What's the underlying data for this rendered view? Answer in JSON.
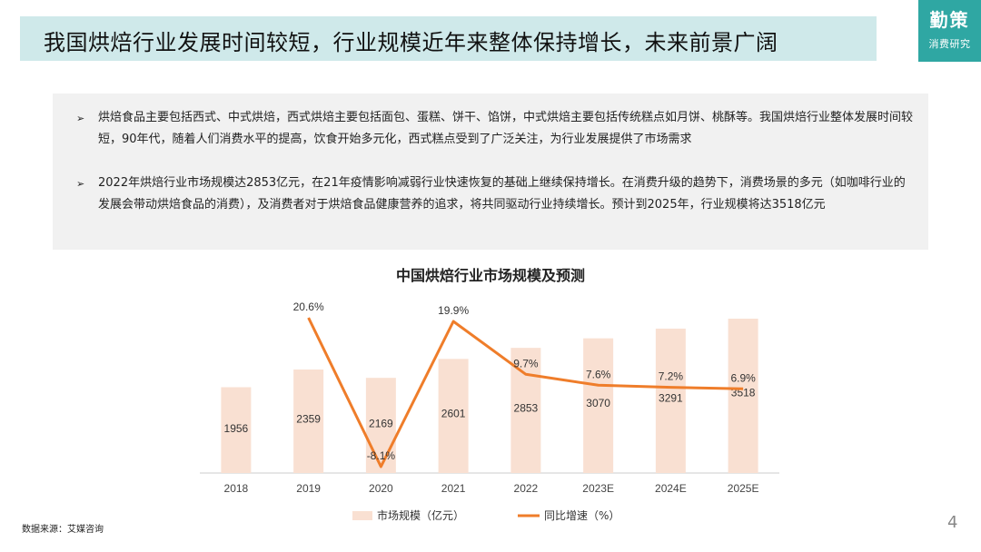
{
  "header": {
    "title": "我国烘焙行业发展时间较短，行业规模近年来整体保持增长，未来前景广阔",
    "logo_main": "勤策",
    "logo_sub": "消费研究"
  },
  "summary": {
    "bullet1": "烘焙食品主要包括西式、中式烘焙，西式烘焙主要包括面包、蛋糕、饼干、馅饼，中式烘焙主要包括传统糕点如月饼、桃酥等。我国烘焙行业整体发展时间较短，90年代，随着人们消费水平的提高，饮食开始多元化，西式糕点受到了广泛关注，为行业发展提供了市场需求",
    "bullet2": "2022年烘焙行业市场规模达2853亿元，在21年疫情影响减弱行业快速恢复的基础上继续保持增长。在消费升级的趋势下，消费场景的多元（如咖啡行业的发展会带动烘焙食品的消费），及消费者对于烘焙食品健康营养的追求，将共同驱动行业持续增长。预计到2025年，行业规模将达3518亿元",
    "bullet_icon": "arrow-right-icon"
  },
  "chart_data": {
    "type": "bar",
    "title": "中国烘焙行业市场规模及预测",
    "categories": [
      "2018",
      "2019",
      "2020",
      "2021",
      "2022",
      "2023E",
      "2024E",
      "2025E"
    ],
    "series": [
      {
        "name": "市场规模（亿元）",
        "type": "bar",
        "values": [
          1956,
          2359,
          2169,
          2601,
          2853,
          3070,
          3291,
          3518
        ],
        "labels": [
          "1956",
          "2359",
          "2169",
          "2601",
          "2853",
          "3070",
          "3291",
          "3518"
        ],
        "color": "#f9e0d2"
      },
      {
        "name": "同比增速（%）",
        "type": "line",
        "values": [
          null,
          20.6,
          -8.1,
          19.9,
          9.7,
          7.6,
          7.2,
          6.9
        ],
        "labels": [
          "",
          "20.6%",
          "-8.1%",
          "19.9%",
          "9.7%",
          "7.6%",
          "7.2%",
          "6.9%"
        ],
        "color": "#ef7d2a"
      }
    ],
    "legend_position": "bottom",
    "grid": false
  },
  "footer": {
    "source": "数据来源：艾媒咨询",
    "page_number": "4"
  }
}
